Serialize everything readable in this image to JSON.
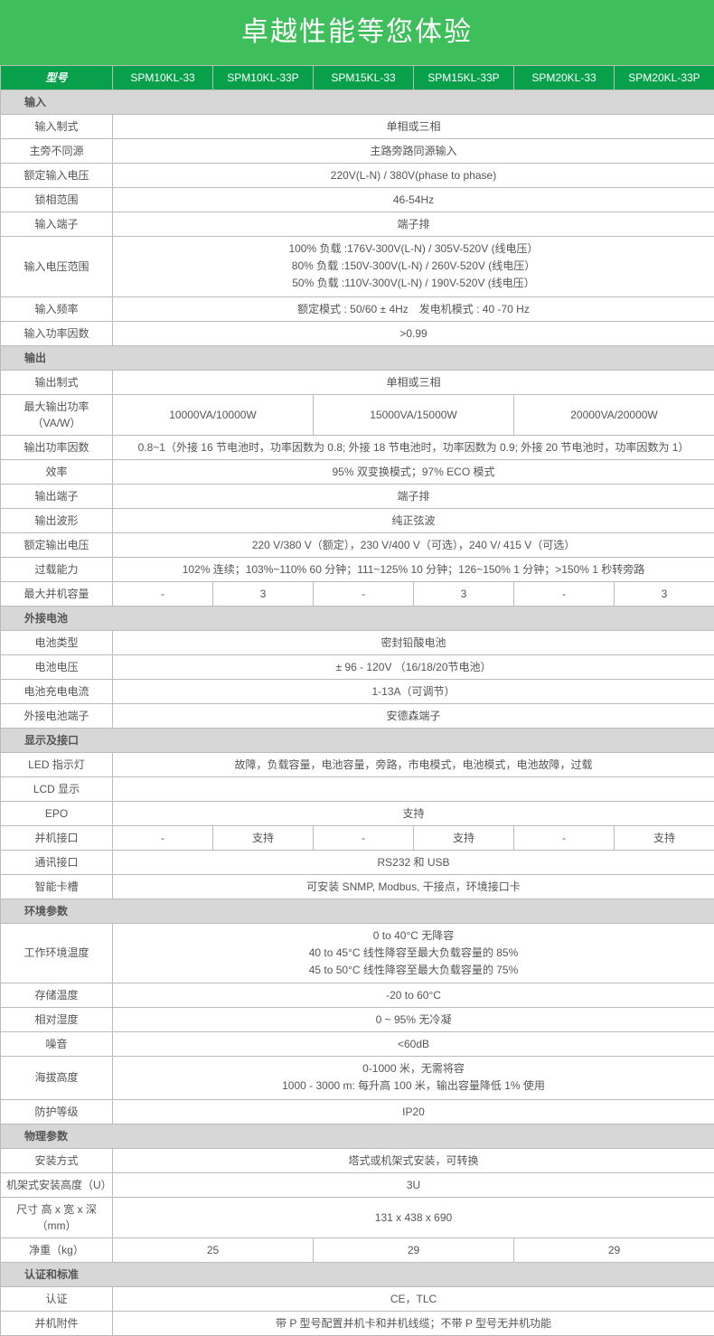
{
  "colors": {
    "banner_bg": "#3fbf5c",
    "banner_text": "#ffffff",
    "header_bg": "#08a04b",
    "header_text": "#ffffff",
    "section_bg": "#d7d7d7",
    "border": "#bbbbbb",
    "text": "#555555"
  },
  "banner_title": "卓越性能等您体验",
  "header": {
    "label": "型号",
    "models": [
      "SPM10KL-33",
      "SPM10KL-33P",
      "SPM15KL-33",
      "SPM15KL-33P",
      "SPM20KL-33",
      "SPM20KL-33P"
    ]
  },
  "sections": [
    {
      "title": "输入",
      "rows": [
        {
          "label": "输入制式",
          "span": 6,
          "value": "单相或三相"
        },
        {
          "label": "主旁不同源",
          "span": 6,
          "value": "主路旁路同源输入"
        },
        {
          "label": "额定输入电压",
          "span": 6,
          "value": "220V(L-N) / 380V(phase to phase)"
        },
        {
          "label": "锁相范围",
          "span": 6,
          "value": "46-54Hz"
        },
        {
          "label": "输入端子",
          "span": 6,
          "value": "端子排"
        },
        {
          "label": "输入电压范围",
          "span": 6,
          "value": "100% 负载 :176V-300V(L-N) / 305V-520V (线电压）\n80% 负载 :150V-300V(L-N) / 260V-520V (线电压）\n50% 负载 :110V-300V(L-N) / 190V-520V (线电压）"
        },
        {
          "label": "输入频率",
          "span": 6,
          "value": "额定模式 : 50/60 ± 4Hz 发电机模式 : 40 -70 Hz"
        },
        {
          "label": "输入功率因数",
          "span": 6,
          "value": ">0.99"
        }
      ]
    },
    {
      "title": "输出",
      "rows": [
        {
          "label": "输出制式",
          "span": 6,
          "value": "单相或三相"
        },
        {
          "label": "最大输出功率（VA/W）",
          "cells": [
            {
              "span": 2,
              "value": "10000VA/10000W"
            },
            {
              "span": 2,
              "value": "15000VA/15000W"
            },
            {
              "span": 2,
              "value": "20000VA/20000W"
            }
          ]
        },
        {
          "label": "输出功率因数",
          "span": 6,
          "value": "0.8~1（外接 16 节电池时，功率因数为 0.8; 外接 18 节电池时，功率因数为 0.9; 外接 20 节电池时，功率因数为 1）"
        },
        {
          "label": "效率",
          "span": 6,
          "value": "95% 双变换模式；97% ECO 模式"
        },
        {
          "label": "输出端子",
          "span": 6,
          "value": "端子排"
        },
        {
          "label": "输出波形",
          "span": 6,
          "value": "纯正弦波"
        },
        {
          "label": "额定输出电压",
          "span": 6,
          "value": "220 V/380 V（额定），230 V/400 V（可选），240 V/ 415 V（可选）"
        },
        {
          "label": "过载能力",
          "span": 6,
          "value": "102% 连续；103%~110% 60 分钟；111~125% 10 分钟；126~150% 1 分钟；>150% 1 秒转旁路"
        },
        {
          "label": "最大并机容量",
          "cells": [
            {
              "span": 1,
              "value": "-"
            },
            {
              "span": 1,
              "value": "3"
            },
            {
              "span": 1,
              "value": "-"
            },
            {
              "span": 1,
              "value": "3"
            },
            {
              "span": 1,
              "value": "-"
            },
            {
              "span": 1,
              "value": "3"
            }
          ]
        }
      ]
    },
    {
      "title": "外接电池",
      "rows": [
        {
          "label": "电池类型",
          "span": 6,
          "value": "密封铅酸电池"
        },
        {
          "label": "电池电压",
          "span": 6,
          "value": "± 96 - 120V （16/18/20节电池）"
        },
        {
          "label": "电池充电电流",
          "span": 6,
          "value": "1-13A（可调节）"
        },
        {
          "label": "外接电池端子",
          "span": 6,
          "value": "安德森端子"
        }
      ]
    },
    {
      "title": "显示及接口",
      "rows": [
        {
          "label": "LED 指示灯",
          "span": 6,
          "value": "故障，负载容量，电池容量，旁路，市电模式，电池模式，电池故障，过载"
        },
        {
          "label": "LCD 显示",
          "span": 6,
          "value": ""
        },
        {
          "label": "EPO",
          "span": 6,
          "value": "支持"
        },
        {
          "label": "并机接口",
          "cells": [
            {
              "span": 1,
              "value": "-"
            },
            {
              "span": 1,
              "value": "支持"
            },
            {
              "span": 1,
              "value": "-"
            },
            {
              "span": 1,
              "value": "支持"
            },
            {
              "span": 1,
              "value": "-"
            },
            {
              "span": 1,
              "value": "支持"
            }
          ]
        },
        {
          "label": "通讯接口",
          "span": 6,
          "value": "RS232 和 USB"
        },
        {
          "label": "智能卡槽",
          "span": 6,
          "value": "可安装 SNMP, Modbus, 干接点，环境接口卡"
        }
      ]
    },
    {
      "title": "环境参数",
      "rows": [
        {
          "label": "工作环境温度",
          "span": 6,
          "value": "0 to 40°C 无降容\n40 to 45°C 线性降容至最大负载容量的 85%\n45 to 50°C 线性降容至最大负载容量的 75%"
        },
        {
          "label": "存储温度",
          "span": 6,
          "value": "-20 to 60°C"
        },
        {
          "label": "相对湿度",
          "span": 6,
          "value": "0 ~ 95% 无冷凝"
        },
        {
          "label": "噪音",
          "span": 6,
          "value": "<60dB"
        },
        {
          "label": "海拔高度",
          "span": 6,
          "value": "0-1000 米，无需将容\n1000 - 3000 m: 每升高 100 米，输出容量降低 1% 使用"
        },
        {
          "label": "防护等级",
          "span": 6,
          "value": "IP20"
        }
      ]
    },
    {
      "title": "物理参数",
      "rows": [
        {
          "label": "安装方式",
          "span": 6,
          "value": "塔式或机架式安装，可转换"
        },
        {
          "label": "机架式安装高度（U）",
          "span": 6,
          "value": "3U"
        },
        {
          "label": "尺寸 高 x 宽 x 深 （mm）",
          "span": 6,
          "value": "131 x 438 x 690"
        },
        {
          "label": "净重（kg）",
          "cells": [
            {
              "span": 2,
              "value": "25"
            },
            {
              "span": 2,
              "value": "29"
            },
            {
              "span": 2,
              "value": "29"
            }
          ]
        }
      ]
    },
    {
      "title": "认证和标准",
      "rows": [
        {
          "label": "认证",
          "span": 6,
          "value": "CE，TLC"
        },
        {
          "label": "并机附件",
          "span": 6,
          "value": "带 P 型号配置并机卡和并机线缆；不带 P 型号无并机功能"
        }
      ]
    }
  ]
}
